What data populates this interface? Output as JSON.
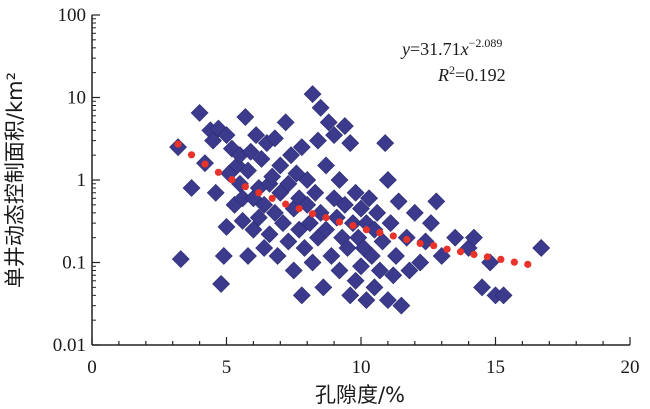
{
  "chart_data": {
    "type": "scatter",
    "xlabel": "孔隙度/%",
    "ylabel": "单井动态控制面积/km²",
    "xlim": [
      0,
      20
    ],
    "ylim": [
      0.01,
      100
    ],
    "yscale": "log",
    "x_ticks": [
      "0",
      "5",
      "10",
      "15",
      "20"
    ],
    "y_ticks": [
      "0.01",
      "0.1",
      "1",
      "10",
      "100"
    ],
    "grid": false,
    "marker_color": "#3b3a8c",
    "trend_color": "#e8322a",
    "annotation": {
      "equation_prefix": "y",
      "equation_eq": "=31.71",
      "equation_var": "x",
      "equation_exp": "−2.089",
      "r2_label": "R",
      "r2_sup": "2",
      "r2_value": "=0.192"
    },
    "series": [
      {
        "kind": "observed",
        "points": [
          [
            3.2,
            2.5
          ],
          [
            3.3,
            0.11
          ],
          [
            3.7,
            0.8
          ],
          [
            4.0,
            6.5
          ],
          [
            4.2,
            1.6
          ],
          [
            4.4,
            4.0
          ],
          [
            4.5,
            3.0
          ],
          [
            4.6,
            0.7
          ],
          [
            4.7,
            4.2
          ],
          [
            4.8,
            0.055
          ],
          [
            4.9,
            0.12
          ],
          [
            5.0,
            0.27
          ],
          [
            5.0,
            3.5
          ],
          [
            5.1,
            1.2
          ],
          [
            5.2,
            2.4
          ],
          [
            5.3,
            0.5
          ],
          [
            5.4,
            1.5
          ],
          [
            5.5,
            0.9
          ],
          [
            5.5,
            2.0
          ],
          [
            5.6,
            0.32
          ],
          [
            5.6,
            0.6
          ],
          [
            5.7,
            5.8
          ],
          [
            5.8,
            0.12
          ],
          [
            5.8,
            1.3
          ],
          [
            5.9,
            2.2
          ],
          [
            6.0,
            0.6
          ],
          [
            6.0,
            0.25
          ],
          [
            6.1,
            3.5
          ],
          [
            6.2,
            0.35
          ],
          [
            6.2,
            0.8
          ],
          [
            6.3,
            1.8
          ],
          [
            6.4,
            0.15
          ],
          [
            6.4,
            0.5
          ],
          [
            6.5,
            2.8
          ],
          [
            6.6,
            0.9
          ],
          [
            6.6,
            0.22
          ],
          [
            6.7,
            1.1
          ],
          [
            6.8,
            0.4
          ],
          [
            6.8,
            3.2
          ],
          [
            6.9,
            0.12
          ],
          [
            7.0,
            0.7
          ],
          [
            7.0,
            1.5
          ],
          [
            7.1,
            0.3
          ],
          [
            7.2,
            5.0
          ],
          [
            7.3,
            0.18
          ],
          [
            7.3,
            0.9
          ],
          [
            7.4,
            2.0
          ],
          [
            7.5,
            0.45
          ],
          [
            7.5,
            0.08
          ],
          [
            7.6,
            1.2
          ],
          [
            7.7,
            0.25
          ],
          [
            7.7,
            0.6
          ],
          [
            7.8,
            0.04
          ],
          [
            7.8,
            2.5
          ],
          [
            7.9,
            0.15
          ],
          [
            8.0,
            0.5
          ],
          [
            8.0,
            1.0
          ],
          [
            8.1,
            0.3
          ],
          [
            8.2,
            0.1
          ],
          [
            8.2,
            11.0
          ],
          [
            8.3,
            0.7
          ],
          [
            8.4,
            0.2
          ],
          [
            8.4,
            3.0
          ],
          [
            8.5,
            0.4
          ],
          [
            8.5,
            7.5
          ],
          [
            8.6,
            0.05
          ],
          [
            8.7,
            1.5
          ],
          [
            8.7,
            0.25
          ],
          [
            8.8,
            5.0
          ],
          [
            8.9,
            0.12
          ],
          [
            9.0,
            0.6
          ],
          [
            9.0,
            3.5
          ],
          [
            9.1,
            0.35
          ],
          [
            9.2,
            0.08
          ],
          [
            9.2,
            1.0
          ],
          [
            9.3,
            0.2
          ],
          [
            9.4,
            4.5
          ],
          [
            9.4,
            0.5
          ],
          [
            9.5,
            0.15
          ],
          [
            9.6,
            0.04
          ],
          [
            9.6,
            2.8
          ],
          [
            9.7,
            0.3
          ],
          [
            9.8,
            0.7
          ],
          [
            9.8,
            0.06
          ],
          [
            9.9,
            0.2
          ],
          [
            10.0,
            0.45
          ],
          [
            10.0,
            0.09
          ],
          [
            10.1,
            0.15
          ],
          [
            10.2,
            0.3
          ],
          [
            10.2,
            0.035
          ],
          [
            10.3,
            0.6
          ],
          [
            10.4,
            0.12
          ],
          [
            10.5,
            0.05
          ],
          [
            10.5,
            0.25
          ],
          [
            10.6,
            0.4
          ],
          [
            10.7,
            0.08
          ],
          [
            10.8,
            0.18
          ],
          [
            10.9,
            2.8
          ],
          [
            11.0,
            0.035
          ],
          [
            11.0,
            1.0
          ],
          [
            11.1,
            0.3
          ],
          [
            11.2,
            0.07
          ],
          [
            11.3,
            0.12
          ],
          [
            11.4,
            0.55
          ],
          [
            11.5,
            0.03
          ],
          [
            11.7,
            0.2
          ],
          [
            11.8,
            0.08
          ],
          [
            12.0,
            0.4
          ],
          [
            12.2,
            0.1
          ],
          [
            12.4,
            0.18
          ],
          [
            12.6,
            0.3
          ],
          [
            12.8,
            0.55
          ],
          [
            13.0,
            0.12
          ],
          [
            13.5,
            0.2
          ],
          [
            14.0,
            0.15
          ],
          [
            14.2,
            0.2
          ],
          [
            14.5,
            0.05
          ],
          [
            14.8,
            0.1
          ],
          [
            15.0,
            0.04
          ],
          [
            15.3,
            0.04
          ],
          [
            16.7,
            0.15
          ]
        ]
      },
      {
        "kind": "fitted",
        "points": [
          [
            3.2,
            2.72
          ],
          [
            3.7,
            2.02
          ],
          [
            4.2,
            1.56
          ],
          [
            4.7,
            1.24
          ],
          [
            5.2,
            1.01
          ],
          [
            5.7,
            0.83
          ],
          [
            6.2,
            0.7
          ],
          [
            6.7,
            0.6
          ],
          [
            7.2,
            0.51
          ],
          [
            7.7,
            0.45
          ],
          [
            8.2,
            0.39
          ],
          [
            8.7,
            0.35
          ],
          [
            9.2,
            0.31
          ],
          [
            9.7,
            0.28
          ],
          [
            10.2,
            0.25
          ],
          [
            10.7,
            0.23
          ],
          [
            11.2,
            0.21
          ],
          [
            11.7,
            0.19
          ],
          [
            12.2,
            0.17
          ],
          [
            12.7,
            0.16
          ],
          [
            13.2,
            0.145
          ],
          [
            13.7,
            0.135
          ],
          [
            14.2,
            0.125
          ],
          [
            14.7,
            0.117
          ],
          [
            15.2,
            0.109
          ],
          [
            15.7,
            0.101
          ],
          [
            16.2,
            0.095
          ]
        ]
      }
    ]
  }
}
